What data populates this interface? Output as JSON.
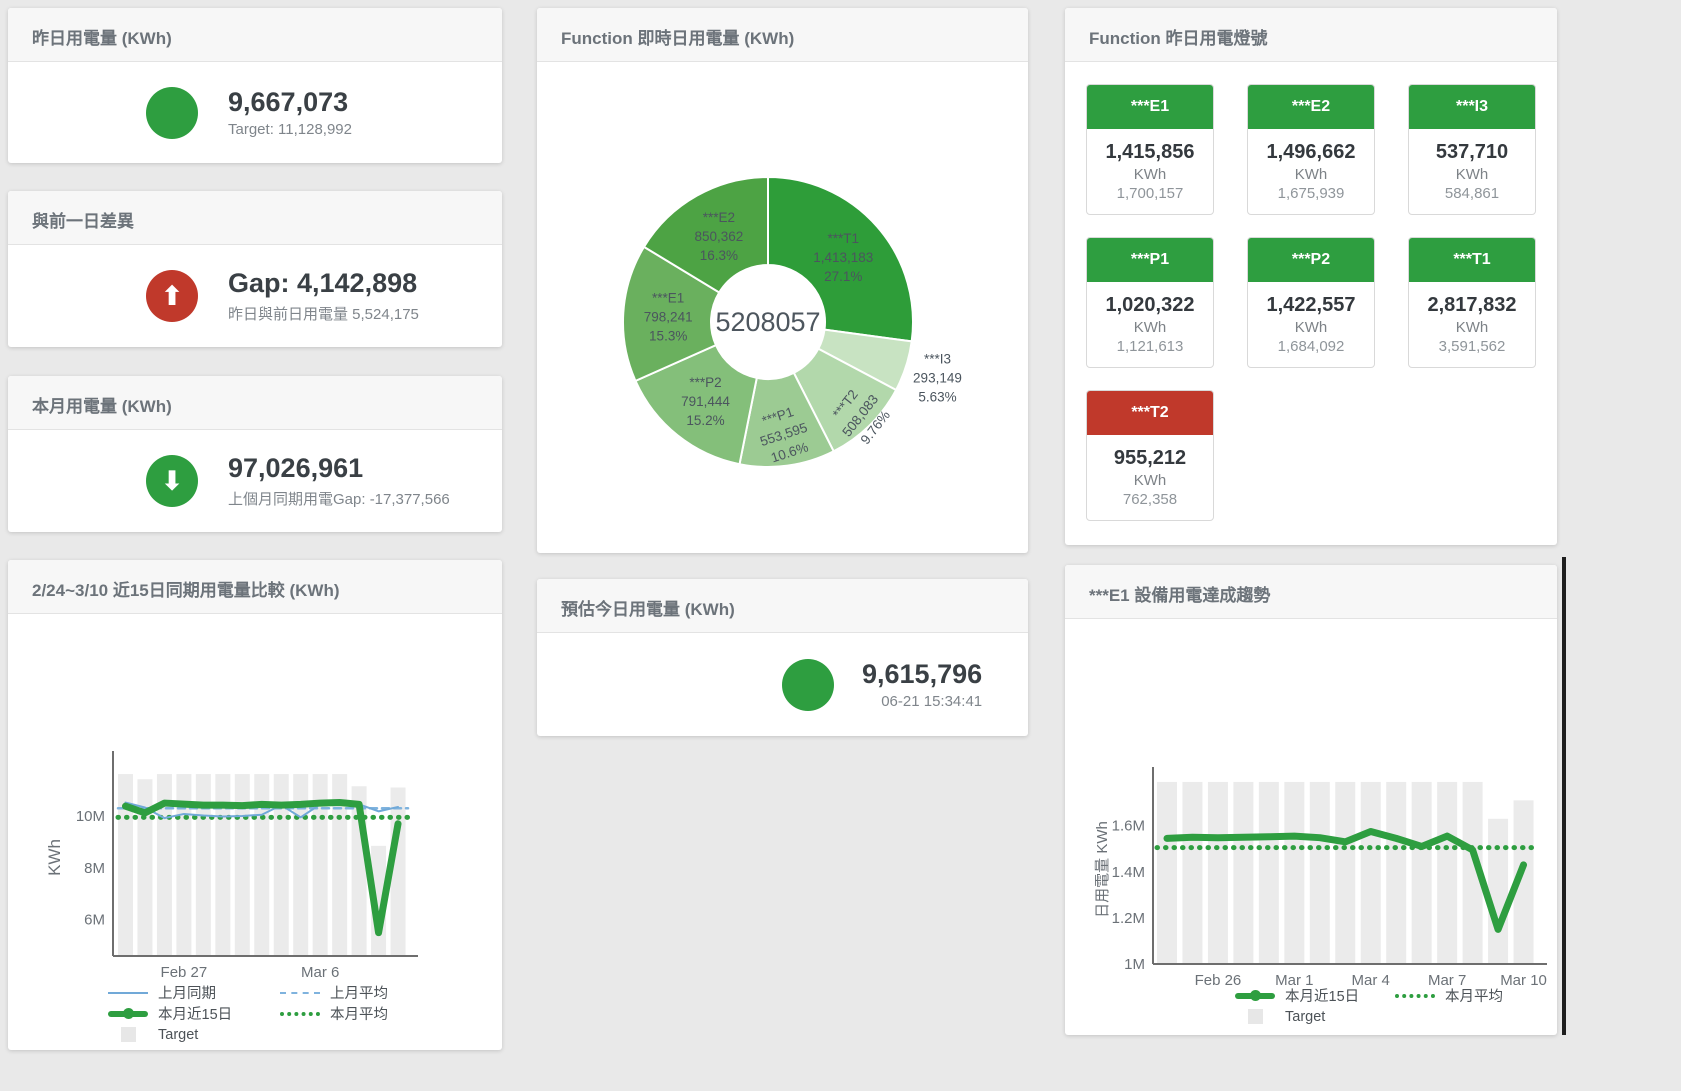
{
  "colors": {
    "green": "#2e9e40",
    "red": "#c0392b",
    "blue_line": "#71a9d8",
    "blue_dash": "#7fb3de",
    "target_bar": "#ebebeb",
    "title_text": "#6c737a"
  },
  "cards": {
    "yesterday": {
      "title": "昨日用電量 (KWh)",
      "value": "9,667,073",
      "sub": "Target: 11,128,992"
    },
    "gap": {
      "title": "與前一日差異",
      "value": "Gap: 4,142,898",
      "sub": "昨日與前日用電量 5,524,175",
      "icon": "arrow-up"
    },
    "month": {
      "title": "本月用電量 (KWh)",
      "value": "97,026,961",
      "sub": "上個月同期用電Gap: -17,377,566",
      "icon": "arrow-down"
    },
    "today": {
      "title": "預估今日用電量 (KWh)",
      "value": "9,615,796",
      "timestamp": "06-21 15:34:41"
    }
  },
  "lights": {
    "title": "Function 昨日用電燈號",
    "tiles": [
      {
        "label": "***E1",
        "value": "1,415,856",
        "unit": "KWh",
        "target": "1,700,157",
        "status": "green"
      },
      {
        "label": "***E2",
        "value": "1,496,662",
        "unit": "KWh",
        "target": "1,675,939",
        "status": "green"
      },
      {
        "label": "***I3",
        "value": "537,710",
        "unit": "KWh",
        "target": "584,861",
        "status": "green"
      },
      {
        "label": "***P1",
        "value": "1,020,322",
        "unit": "KWh",
        "target": "1,121,613",
        "status": "green"
      },
      {
        "label": "***P2",
        "value": "1,422,557",
        "unit": "KWh",
        "target": "1,684,092",
        "status": "green"
      },
      {
        "label": "***T1",
        "value": "2,817,832",
        "unit": "KWh",
        "target": "3,591,562",
        "status": "green"
      },
      {
        "label": "***T2",
        "value": "955,212",
        "unit": "KWh",
        "target": "762,358",
        "status": "red"
      }
    ]
  },
  "chart_data": [
    {
      "type": "pie",
      "title": "Function 即時日用電量 (KWh)",
      "center_label": "5208057",
      "donut": true,
      "slices": [
        {
          "label": "***T1",
          "value": 1413183,
          "pct": "27.1%",
          "color": "#2e9d39"
        },
        {
          "label": "***I3",
          "value": 293149,
          "pct": "5.63%",
          "color": "#c8e3c2",
          "label_outside": true,
          "label_r": 178
        },
        {
          "label": "***T2",
          "value": 508083,
          "pct": "9.76%",
          "color": "#b2d8ab",
          "label_rotate": -52,
          "label_r": 130
        },
        {
          "label": "***P1",
          "value": 553595,
          "pct": "10.6%",
          "color": "#9ccb93",
          "label_rotate": -18,
          "label_r": 112
        },
        {
          "label": "***P2",
          "value": 791444,
          "pct": "15.2%",
          "color": "#84bf7a"
        },
        {
          "label": "***E1",
          "value": 798241,
          "pct": "15.3%",
          "color": "#6ab05e"
        },
        {
          "label": "***E2",
          "value": 850362,
          "pct": "16.3%",
          "color": "#4da344"
        }
      ]
    },
    {
      "type": "line",
      "title": "2/24~3/10 近15日同期用電量比較 (KWh)",
      "ylabel": "KWh",
      "categories": [
        "Feb 24",
        "Feb 25",
        "Feb 26",
        "Feb 27",
        "Feb 28",
        "Mar 1",
        "Mar 2",
        "Mar 3",
        "Mar 4",
        "Mar 5",
        "Mar 6",
        "Mar 7",
        "Mar 8",
        "Mar 9",
        "Mar 10"
      ],
      "x_ticks": [
        {
          "index": 3,
          "label": "Feb 27"
        },
        {
          "index": 10,
          "label": "Mar 6"
        }
      ],
      "y_ticks": [
        {
          "value": 6000000,
          "label": "6M"
        },
        {
          "value": 8000000,
          "label": "8M"
        },
        {
          "value": 10000000,
          "label": "10M"
        }
      ],
      "ylim": [
        4600000,
        12200000
      ],
      "grid": false,
      "legend_position": "bottom",
      "series": [
        {
          "name": "上月同期",
          "type": "line",
          "color": "#71a9d8",
          "width": 2,
          "values": [
            10520000,
            10330000,
            9920000,
            10080000,
            10020000,
            9980000,
            10000000,
            10050000,
            10420000,
            9950000,
            10450000,
            10480000,
            10450000,
            10180000,
            10350000
          ]
        },
        {
          "name": "上月平均",
          "type": "hline",
          "style": "dashed",
          "color": "#7fb3de",
          "value": 10300000
        },
        {
          "name": "本月近15日",
          "type": "line",
          "color": "#2e9e40",
          "width": 7,
          "values": [
            10380000,
            10120000,
            10500000,
            10460000,
            10420000,
            10420000,
            10400000,
            10450000,
            10420000,
            10450000,
            10500000,
            10520000,
            10450000,
            5500000,
            9700000
          ]
        },
        {
          "name": "本月平均",
          "type": "hline",
          "style": "dotted",
          "color": "#2e9e40",
          "value": 9950000
        },
        {
          "name": "Target",
          "type": "bar",
          "color": "#ebebeb",
          "values": [
            11620000,
            11420000,
            11620000,
            11620000,
            11620000,
            11620000,
            11620000,
            11620000,
            11620000,
            11620000,
            11620000,
            11620000,
            11150000,
            8850000,
            11100000
          ]
        }
      ]
    },
    {
      "type": "line",
      "title": "***E1 設備用電達成趨勢",
      "ylabel": "日用電量 KWh",
      "categories": [
        "Feb 24",
        "Feb 25",
        "Feb 26",
        "Feb 27",
        "Feb 28",
        "Mar 1",
        "Mar 2",
        "Mar 3",
        "Mar 4",
        "Mar 5",
        "Mar 6",
        "Mar 7",
        "Mar 8",
        "Mar 9",
        "Mar 10"
      ],
      "x_ticks": [
        {
          "index": 2,
          "label": "Feb 26"
        },
        {
          "index": 5,
          "label": "Mar 1"
        },
        {
          "index": 8,
          "label": "Mar 4"
        },
        {
          "index": 11,
          "label": "Mar 7"
        },
        {
          "index": 14,
          "label": "Mar 10"
        }
      ],
      "y_ticks": [
        {
          "value": 1000000,
          "label": "1M"
        },
        {
          "value": 1200000,
          "label": "1.2M"
        },
        {
          "value": 1400000,
          "label": "1.4M"
        },
        {
          "value": 1600000,
          "label": "1.6M"
        }
      ],
      "ylim": [
        1000000,
        1820000
      ],
      "grid": false,
      "legend_position": "bottom",
      "series": [
        {
          "name": "本月近15日",
          "type": "line",
          "color": "#2e9e40",
          "width": 7,
          "values": [
            1545000,
            1550000,
            1548000,
            1550000,
            1552000,
            1555000,
            1548000,
            1530000,
            1575000,
            1545000,
            1510000,
            1555000,
            1495000,
            1150000,
            1430000
          ]
        },
        {
          "name": "本月平均",
          "type": "hline",
          "style": "dotted",
          "color": "#2e9e40",
          "value": 1505000
        },
        {
          "name": "Target",
          "type": "bar",
          "color": "#ebebeb",
          "values": [
            1790000,
            1790000,
            1790000,
            1790000,
            1790000,
            1790000,
            1790000,
            1790000,
            1790000,
            1790000,
            1790000,
            1790000,
            1790000,
            1630000,
            1710000
          ]
        }
      ]
    }
  ]
}
